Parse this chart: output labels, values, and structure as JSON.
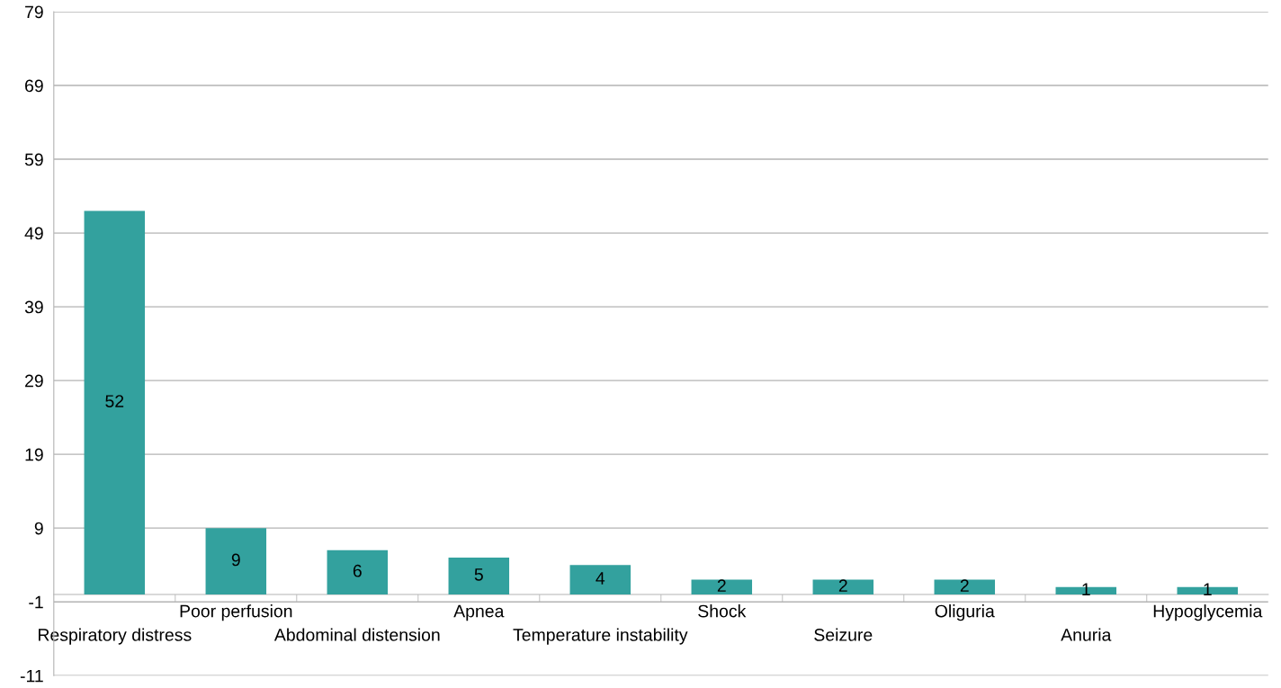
{
  "chart_data": {
    "type": "bar",
    "categories": [
      "Respiratory distress",
      "Poor perfusion",
      "Abdominal distension",
      "Apnea",
      "Temperature instability",
      "Shock",
      "Seizure",
      "Oliguria",
      "Anuria",
      "Hypoglycemia"
    ],
    "values": [
      52,
      9,
      6,
      5,
      4,
      2,
      2,
      2,
      1,
      1
    ],
    "color": "#33a19e",
    "ylim": [
      -11,
      79
    ],
    "yticks": [
      -11,
      -1,
      9,
      19,
      29,
      39,
      49,
      59,
      69,
      79
    ],
    "grid": "y",
    "data_labels": true,
    "legend": false
  }
}
